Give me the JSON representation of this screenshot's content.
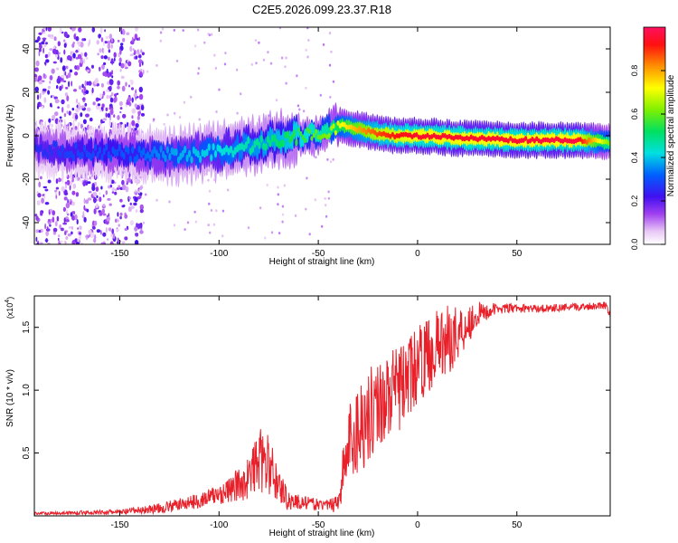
{
  "figure_title": "C2E5.2026.099.23.37.R18",
  "chart_data": [
    {
      "type": "heatmap",
      "title": "C2E5.2026.099.23.37.R18",
      "xlabel": "Height of straight line (km)",
      "ylabel": "Frequency (Hz)",
      "xlim": [
        -193,
        97
      ],
      "ylim": [
        -50,
        50
      ],
      "xticks": [
        -150,
        -100,
        -50,
        0,
        50
      ],
      "yticks": [
        -40,
        -20,
        0,
        20,
        40
      ],
      "colorbar": {
        "label": "Normalized spectral amplitude",
        "range": [
          0,
          1
        ],
        "ticks": [
          0.0,
          0.2,
          0.4,
          0.6,
          0.8
        ]
      },
      "ridge": {
        "x": [
          -193,
          -175,
          -150,
          -140,
          -120,
          -100,
          -80,
          -60,
          -45,
          -40,
          -30,
          -20,
          -10,
          0,
          20,
          50,
          80,
          97
        ],
        "y": [
          -6,
          -7,
          -8,
          -9,
          -9,
          -7,
          -4,
          0,
          2,
          5,
          3,
          1,
          0,
          0,
          -1,
          -2,
          -2,
          -3
        ],
        "amplitude": [
          0.25,
          0.28,
          0.3,
          0.32,
          0.38,
          0.42,
          0.48,
          0.55,
          0.62,
          0.7,
          0.8,
          0.88,
          0.92,
          0.95,
          0.95,
          0.96,
          0.97,
          0.6
        ]
      }
    },
    {
      "type": "line",
      "xlabel": "Height of straight line (km)",
      "ylabel": "SNR (10 * v/v)",
      "multiplier_label": "(x10",
      "multiplier_exp": "4",
      "multiplier_close": ")",
      "xlim": [
        -193,
        97
      ],
      "ylim": [
        0,
        1.75
      ],
      "xticks": [
        -150,
        -100,
        -50,
        0,
        50
      ],
      "yticks": [
        0.5,
        1.0,
        1.5
      ],
      "series": [
        {
          "name": "SNR",
          "color": "#e8202a",
          "envelope_x": [
            -193,
            -150,
            -130,
            -110,
            -95,
            -85,
            -80,
            -75,
            -70,
            -65,
            -55,
            -45,
            -40,
            -38,
            -35,
            -30,
            -20,
            -10,
            0,
            10,
            20,
            30,
            40,
            60,
            80,
            95,
            97
          ],
          "envelope_y": [
            0.02,
            0.03,
            0.06,
            0.12,
            0.2,
            0.3,
            0.45,
            0.4,
            0.25,
            0.12,
            0.1,
            0.08,
            0.12,
            0.3,
            0.55,
            0.7,
            0.9,
            1.0,
            1.2,
            1.35,
            1.45,
            1.6,
            1.65,
            1.65,
            1.66,
            1.68,
            1.6
          ],
          "noise_amplitude": [
            0.01,
            0.02,
            0.04,
            0.06,
            0.1,
            0.18,
            0.25,
            0.25,
            0.15,
            0.08,
            0.05,
            0.04,
            0.1,
            0.2,
            0.35,
            0.4,
            0.35,
            0.35,
            0.3,
            0.3,
            0.25,
            0.1,
            0.04,
            0.03,
            0.03,
            0.03,
            0.03
          ]
        }
      ]
    }
  ]
}
